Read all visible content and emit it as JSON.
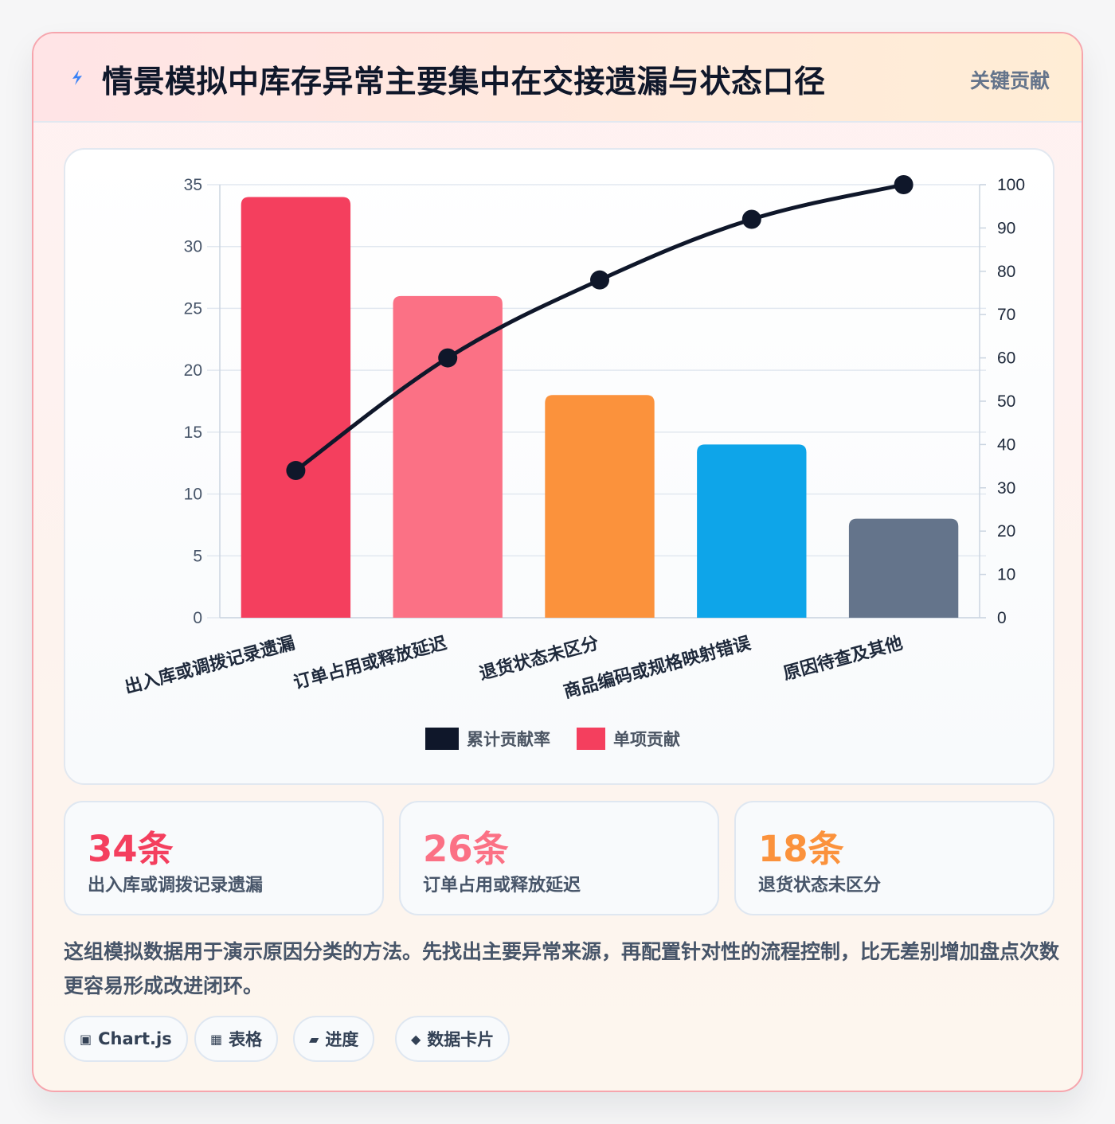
{
  "header": {
    "title": "情景模拟中库存异常主要集中在交接遗漏与状态口径",
    "tag": "关键贡献",
    "icon": "lightning-icon"
  },
  "chart_data": {
    "type": "bar",
    "categories": [
      "出入库或调拨记录遗漏",
      "订单占用或释放延迟",
      "退货状态未区分",
      "商品编码或规格映射错误",
      "原因待查及其他"
    ],
    "series": [
      {
        "name": "单项贡献",
        "type": "bar",
        "axis": "left",
        "values": [
          34,
          26,
          18,
          14,
          8
        ],
        "colors": [
          "#f43f5e",
          "#fb7185",
          "#fb923c",
          "#0ea5e9",
          "#64748b"
        ]
      },
      {
        "name": "累计贡献率",
        "type": "line",
        "axis": "right",
        "values": [
          34,
          60,
          78,
          92,
          100
        ],
        "color": "#0f172a"
      }
    ],
    "ylim": [
      0,
      35
    ],
    "yticks": [
      0,
      5,
      10,
      15,
      20,
      25,
      30,
      35
    ],
    "y2lim": [
      0,
      100
    ],
    "y2ticks": [
      0,
      10,
      20,
      30,
      40,
      50,
      60,
      70,
      80,
      90,
      100
    ],
    "legend": [
      "累计贡献率",
      "单项贡献"
    ],
    "legend_position": "bottom",
    "grid": true
  },
  "stats": [
    {
      "value": "34条",
      "label": "出入库或调拨记录遗漏",
      "color": "#f43f5e"
    },
    {
      "value": "26条",
      "label": "订单占用或释放延迟",
      "color": "#fb7185"
    },
    {
      "value": "18条",
      "label": "退货状态未区分",
      "color": "#fb923c"
    }
  ],
  "note": "这组模拟数据用于演示原因分类的方法。先找出主要异常来源，再配置针对性的流程控制，比无差别增加盘点次数更容易形成改进闭环。",
  "chips": [
    {
      "icon": "▣",
      "label": "Chart.js",
      "icon_name": "chart-icon"
    },
    {
      "icon": "▦",
      "label": "表格",
      "icon_name": "table-icon"
    },
    {
      "icon": "▰",
      "label": "进度",
      "icon_name": "progress-icon"
    },
    {
      "icon": "◆",
      "label": "数据卡片",
      "icon_name": "diamond-icon"
    }
  ]
}
